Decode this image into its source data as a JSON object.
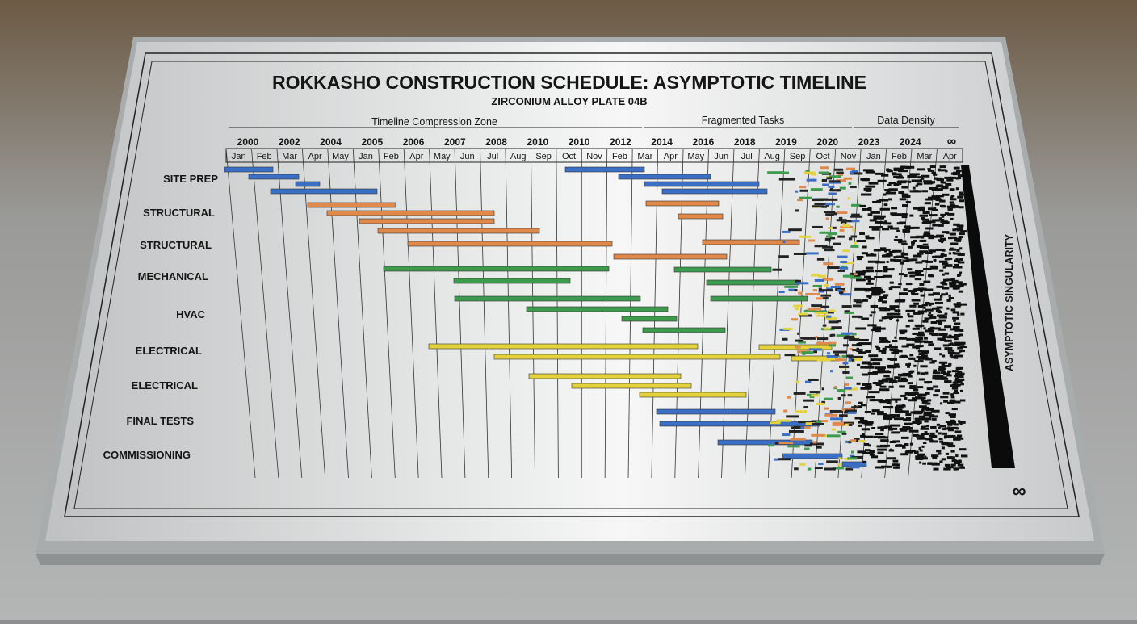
{
  "plaque": {
    "title": "ROKKASHO CONSTRUCTION SCHEDULE: ASYMPTOTIC TIMELINE",
    "subtitle": "ZIRCONIUM ALLOY PLATE 04B",
    "zones": [
      "Timeline Compression Zone",
      "Fragmented Tasks",
      "Data Density"
    ],
    "years": [
      "2000",
      "2002",
      "2004",
      "2005",
      "2006",
      "2007",
      "2008",
      "2010",
      "2010",
      "2012",
      "2014",
      "2016",
      "2018",
      "2019",
      "2020",
      "2023",
      "2024",
      "∞"
    ],
    "months": [
      "Jan",
      "Feb",
      "Mar",
      "Apr",
      "May",
      "Jan",
      "Feb",
      "Apr",
      "May",
      "Jun",
      "Jul",
      "Aug",
      "Sep",
      "Oct",
      "Nov",
      "Feb",
      "Mar",
      "Apr",
      "May",
      "Jun",
      "Jul",
      "Aug",
      "Sep",
      "Oct",
      "Nov",
      "Jan",
      "Feb",
      "Mar",
      "Apr"
    ],
    "rows": [
      "SITE PREP",
      "STRUCTURAL",
      "STRUCTURAL",
      "MECHANICAL",
      "HVAC",
      "ELECTRICAL",
      "ELECTRICAL",
      "FINAL TESTS",
      "COMMISSIONING"
    ],
    "side_label": "ASYMPTOTIC SINGULARITY",
    "corner": "∞"
  }
}
